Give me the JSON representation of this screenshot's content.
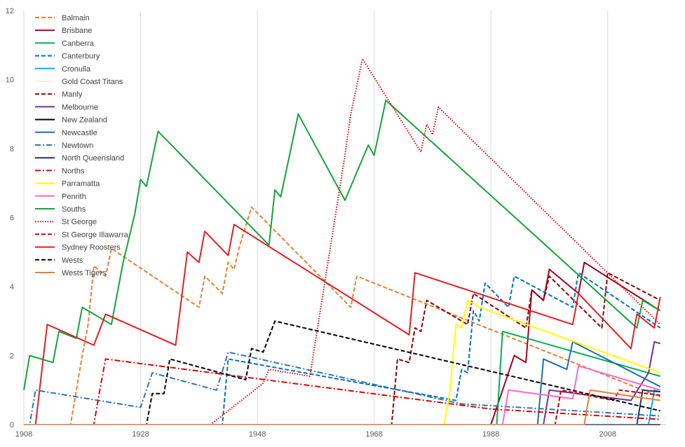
{
  "chart_data": {
    "type": "line",
    "title": "",
    "xlabel": "",
    "ylabel": "",
    "xlim": [
      1908,
      2018
    ],
    "ylim": [
      0,
      12
    ],
    "x_ticks": [
      1908,
      1928,
      1948,
      1968,
      1988,
      2008
    ],
    "y_ticks": [
      0,
      2,
      4,
      6,
      8,
      10,
      12
    ],
    "grid": "vertical",
    "legend_position": "top-left",
    "series": [
      {
        "name": "Balmain",
        "color": "#ED7D31",
        "dash": "dash",
        "points": [
          [
            1908,
            0
          ],
          [
            1916,
            0
          ],
          [
            1917,
            1.0
          ],
          [
            1918,
            2.0
          ],
          [
            1919,
            2.9
          ],
          [
            1920,
            4.6
          ],
          [
            1922,
            4.3
          ],
          [
            1923,
            5.1
          ],
          [
            1938,
            3.4
          ],
          [
            1939,
            4.3
          ],
          [
            1942,
            3.8
          ],
          [
            1943,
            4.7
          ],
          [
            1944,
            4.5
          ],
          [
            1945,
            5.2
          ],
          [
            1947,
            6.3
          ],
          [
            1964,
            3.4
          ],
          [
            1965,
            4.3
          ],
          [
            2017,
            0.8
          ]
        ]
      },
      {
        "name": "Brisbane",
        "color": "#A50021",
        "dash": "solid",
        "points": [
          [
            1908,
            0
          ],
          [
            1988,
            0
          ],
          [
            1992,
            2.0
          ],
          [
            1994,
            1.8
          ],
          [
            1995,
            3.9
          ],
          [
            1997,
            3.6
          ],
          [
            1998,
            4.5
          ],
          [
            2003,
            3.8
          ],
          [
            2004,
            4.7
          ],
          [
            2017,
            3.3
          ]
        ]
      },
      {
        "name": "Canberra",
        "color": "#00B050",
        "dash": "solid",
        "points": [
          [
            1908,
            0
          ],
          [
            1989,
            0
          ],
          [
            1990,
            2.7
          ],
          [
            2017,
            1.4
          ]
        ]
      },
      {
        "name": "Canterbury",
        "color": "#0070C0",
        "dash": "dash",
        "points": [
          [
            1908,
            0
          ],
          [
            1942,
            0
          ],
          [
            1943,
            1.9
          ],
          [
            1982,
            0.7
          ],
          [
            1983,
            1.6
          ],
          [
            1984,
            1.5
          ],
          [
            1985,
            3.3
          ],
          [
            1986,
            3.0
          ],
          [
            1987,
            4.1
          ],
          [
            1991,
            3.4
          ],
          [
            1992,
            4.3
          ],
          [
            2002,
            3.4
          ],
          [
            2003,
            4.4
          ],
          [
            2017,
            2.8
          ]
        ]
      },
      {
        "name": "Cronulla",
        "color": "#00B0F0",
        "dash": "solid",
        "points": [
          [
            1908,
            0
          ],
          [
            2015,
            0
          ],
          [
            2016,
            1.0
          ],
          [
            2017,
            0.95
          ]
        ]
      },
      {
        "name": "Gold Coast Titans",
        "color": "#FFF2CC",
        "dash": "solid",
        "points": [
          [
            1908,
            0
          ],
          [
            2017,
            0
          ]
        ]
      },
      {
        "name": "Manly",
        "color": "#8B0000",
        "dash": "dash",
        "points": [
          [
            1908,
            0
          ],
          [
            1971,
            0
          ],
          [
            1972,
            1.9
          ],
          [
            1974,
            1.8
          ],
          [
            1975,
            2.8
          ],
          [
            1976,
            2.7
          ],
          [
            1977,
            3.6
          ],
          [
            1984,
            2.9
          ],
          [
            1985,
            3.8
          ],
          [
            1994,
            2.8
          ],
          [
            1995,
            3.9
          ],
          [
            1997,
            3.6
          ],
          [
            1998,
            4.3
          ],
          [
            2007,
            2.8
          ],
          [
            2008,
            4.4
          ],
          [
            2017,
            3.6
          ]
        ]
      },
      {
        "name": "Melbourne",
        "color": "#7030A0",
        "dash": "solid",
        "points": [
          [
            1908,
            0
          ],
          [
            1997,
            0
          ],
          [
            1998,
            1.0
          ],
          [
            2012,
            0.7
          ],
          [
            2015,
            1.5
          ],
          [
            2016,
            2.4
          ],
          [
            2017,
            2.35
          ]
        ]
      },
      {
        "name": "New Zealand",
        "color": "#000000",
        "dash": "solid",
        "points": [
          [
            1908,
            0
          ],
          [
            2017,
            0
          ]
        ]
      },
      {
        "name": "Newcastle",
        "color": "#1F6FA8",
        "dash": "solid",
        "points": [
          [
            1908,
            0
          ],
          [
            1996,
            0
          ],
          [
            1997,
            1.9
          ],
          [
            2001,
            1.6
          ],
          [
            2002,
            2.4
          ],
          [
            2017,
            1.1
          ]
        ]
      },
      {
        "name": "Newtown",
        "color": "#2E75B6",
        "dash": "dashdot",
        "points": [
          [
            1908,
            0
          ],
          [
            1909,
            0
          ],
          [
            1910,
            1.0
          ],
          [
            1928,
            0.5
          ],
          [
            1929,
            1.0
          ],
          [
            1930,
            1.5
          ],
          [
            1941,
            1.0
          ],
          [
            1943,
            2.1
          ],
          [
            1983,
            0.6
          ],
          [
            2017,
            0.25
          ]
        ]
      },
      {
        "name": "North Queensland",
        "color": "#1F3864",
        "dash": "solid",
        "points": [
          [
            1908,
            0
          ],
          [
            2013,
            0
          ],
          [
            2014,
            1.0
          ],
          [
            2017,
            0.95
          ]
        ]
      },
      {
        "name": "Norths",
        "color": "#E00000",
        "dash": "dashdot",
        "points": [
          [
            1908,
            0
          ],
          [
            1920,
            0
          ],
          [
            1921,
            1.0
          ],
          [
            1922,
            1.9
          ],
          [
            1988,
            0.45
          ],
          [
            2017,
            0.15
          ]
        ]
      },
      {
        "name": "Parramatta",
        "color": "#FFFF00",
        "dash": "solid",
        "points": [
          [
            1908,
            0
          ],
          [
            1980,
            0
          ],
          [
            1981,
            1.0
          ],
          [
            1982,
            2.9
          ],
          [
            1983,
            2.8
          ],
          [
            1984,
            3.6
          ],
          [
            1986,
            3.4
          ],
          [
            2017,
            1.5
          ]
        ]
      },
      {
        "name": "Penrith",
        "color": "#FF66CC",
        "dash": "solid",
        "points": [
          [
            1908,
            0
          ],
          [
            1990,
            0
          ],
          [
            1991,
            1.0
          ],
          [
            2002,
            0.75
          ],
          [
            2003,
            1.7
          ],
          [
            2017,
            1.0
          ]
        ]
      },
      {
        "name": "Souths",
        "color": "#13A538",
        "dash": "solid",
        "points": [
          [
            1908,
            1.0
          ],
          [
            1909,
            2.0
          ],
          [
            1913,
            1.8
          ],
          [
            1914,
            2.7
          ],
          [
            1917,
            2.5
          ],
          [
            1918,
            3.4
          ],
          [
            1923,
            2.9
          ],
          [
            1925,
            4.7
          ],
          [
            1927,
            6.1
          ],
          [
            1928,
            7.1
          ],
          [
            1929,
            6.9
          ],
          [
            1931,
            8.5
          ],
          [
            1950,
            5.2
          ],
          [
            1951,
            6.8
          ],
          [
            1952,
            6.6
          ],
          [
            1955,
            9.0
          ],
          [
            1963,
            6.5
          ],
          [
            1967,
            8.1
          ],
          [
            1968,
            7.8
          ],
          [
            1970,
            9.4
          ],
          [
            2013,
            2.8
          ],
          [
            2014,
            3.6
          ],
          [
            2017,
            3.3
          ]
        ]
      },
      {
        "name": "St George",
        "color": "#E60000",
        "dash": "dot",
        "points": [
          [
            1908,
            0
          ],
          [
            1940,
            0
          ],
          [
            1949,
            1.2
          ],
          [
            1950,
            1.6
          ],
          [
            1957,
            1.4
          ],
          [
            1963,
            7.8
          ],
          [
            1964,
            9.0
          ],
          [
            1966,
            10.6
          ],
          [
            1976,
            7.9
          ],
          [
            1977,
            8.7
          ],
          [
            1978,
            8.4
          ],
          [
            1979,
            9.2
          ],
          [
            2017,
            2.9
          ]
        ]
      },
      {
        "name": "St George Illawarra",
        "color": "#C00000",
        "dash": "dash",
        "points": [
          [
            1908,
            0
          ],
          [
            1999,
            0
          ],
          [
            2000,
            1.0
          ],
          [
            2009,
            0.7
          ],
          [
            2010,
            1.0
          ],
          [
            2017,
            0.85
          ]
        ]
      },
      {
        "name": "Sydney Roosters",
        "color": "#E31E24",
        "dash": "solid",
        "points": [
          [
            1908,
            0
          ],
          [
            1910,
            0
          ],
          [
            1912,
            2.9
          ],
          [
            1920,
            2.3
          ],
          [
            1922,
            3.2
          ],
          [
            1934,
            2.3
          ],
          [
            1936,
            5.0
          ],
          [
            1938,
            4.7
          ],
          [
            1939,
            5.6
          ],
          [
            1943,
            4.9
          ],
          [
            1944,
            5.8
          ],
          [
            1974,
            2.6
          ],
          [
            1975,
            4.4
          ],
          [
            2002,
            2.9
          ],
          [
            2003,
            3.8
          ],
          [
            2012,
            2.2
          ],
          [
            2013,
            3.2
          ],
          [
            2016,
            2.8
          ],
          [
            2017,
            3.7
          ]
        ]
      },
      {
        "name": "Wests",
        "color": "#000000",
        "dash": "dash",
        "points": [
          [
            1908,
            0
          ],
          [
            1929,
            0
          ],
          [
            1930,
            0.9
          ],
          [
            1932,
            0.9
          ],
          [
            1933,
            1.9
          ],
          [
            1946,
            1.3
          ],
          [
            1947,
            2.2
          ],
          [
            1949,
            2.1
          ],
          [
            1951,
            3.0
          ],
          [
            2017,
            0.4
          ]
        ]
      },
      {
        "name": "Wests Tigers",
        "color": "#ED7D31",
        "dash": "solid",
        "points": [
          [
            1908,
            0
          ],
          [
            2004,
            0
          ],
          [
            2005,
            1.0
          ],
          [
            2017,
            0.7
          ]
        ]
      }
    ]
  }
}
